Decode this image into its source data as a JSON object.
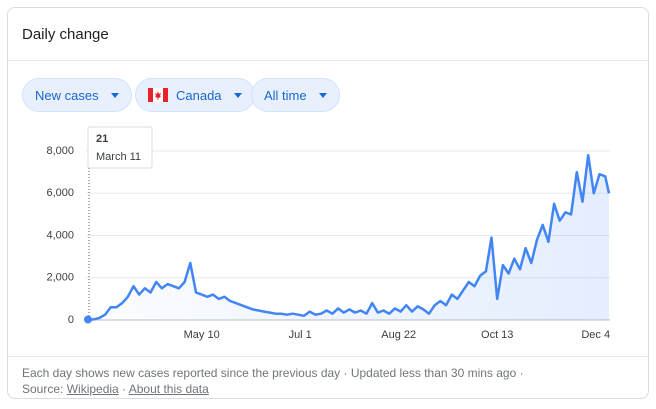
{
  "header": {
    "title": "Daily change"
  },
  "filters": [
    {
      "label": "New cases"
    },
    {
      "label": "Canada"
    },
    {
      "label": "All time"
    }
  ],
  "chart_data": {
    "type": "line",
    "x": [
      "Mar 11",
      "Mar 14",
      "Mar 17",
      "Mar 20",
      "Mar 23",
      "Mar 26",
      "Mar 29",
      "Apr 1",
      "Apr 4",
      "Apr 7",
      "Apr 10",
      "Apr 13",
      "Apr 16",
      "Apr 19",
      "Apr 22",
      "Apr 25",
      "Apr 28",
      "May 1",
      "May 4",
      "May 7",
      "May 10",
      "May 13",
      "May 16",
      "May 19",
      "May 22",
      "May 25",
      "May 28",
      "May 31",
      "Jun 3",
      "Jun 6",
      "Jun 9",
      "Jun 12",
      "Jun 15",
      "Jun 18",
      "Jun 21",
      "Jun 24",
      "Jun 27",
      "Jun 30",
      "Jul 3",
      "Jul 6",
      "Jul 9",
      "Jul 12",
      "Jul 15",
      "Jul 18",
      "Jul 21",
      "Jul 24",
      "Jul 27",
      "Jul 30",
      "Aug 2",
      "Aug 5",
      "Aug 8",
      "Aug 11",
      "Aug 14",
      "Aug 17",
      "Aug 20",
      "Aug 23",
      "Aug 26",
      "Aug 29",
      "Sep 1",
      "Sep 4",
      "Sep 7",
      "Sep 10",
      "Sep 13",
      "Sep 16",
      "Sep 19",
      "Sep 22",
      "Sep 25",
      "Sep 28",
      "Oct 1",
      "Oct 4",
      "Oct 7",
      "Oct 10",
      "Oct 13",
      "Oct 16",
      "Oct 19",
      "Oct 22",
      "Oct 25",
      "Oct 28",
      "Oct 31",
      "Nov 3",
      "Nov 6",
      "Nov 9",
      "Nov 12",
      "Nov 15",
      "Nov 18",
      "Nov 21",
      "Nov 24",
      "Nov 27",
      "Nov 30",
      "Dec 3",
      "Dec 6",
      "Dec 9",
      "Dec 11"
    ],
    "series": [
      {
        "name": "New cases",
        "color": "#4285f4",
        "values": [
          21,
          30,
          100,
          250,
          600,
          600,
          800,
          1100,
          1600,
          1200,
          1500,
          1300,
          1800,
          1500,
          1700,
          1600,
          1500,
          1800,
          2700,
          1300,
          1200,
          1100,
          1200,
          1000,
          1100,
          900,
          800,
          700,
          600,
          500,
          450,
          400,
          350,
          300,
          300,
          250,
          300,
          250,
          200,
          400,
          250,
          300,
          450,
          300,
          550,
          350,
          500,
          350,
          450,
          300,
          800,
          350,
          450,
          300,
          550,
          400,
          700,
          400,
          650,
          500,
          300,
          700,
          900,
          700,
          1200,
          1000,
          1400,
          1800,
          1600,
          2100,
          2300,
          3900,
          1000,
          2600,
          2200,
          2900,
          2400,
          3400,
          2700,
          3800,
          4500,
          3700,
          5500,
          4700,
          5100,
          5000,
          7000,
          5600,
          7800,
          6000,
          6900,
          6800,
          6000
        ]
      }
    ],
    "xlim": [
      "Mar 11",
      "Dec 11"
    ],
    "xticks": [
      "May 10",
      "Jul 1",
      "Aug 22",
      "Oct 13",
      "Dec 4"
    ],
    "ylim": [
      0,
      8000
    ],
    "yticks": [
      0,
      {
        "value": 2000,
        "label": "2,000"
      },
      {
        "value": 4000,
        "label": "4,000"
      },
      {
        "value": 6000,
        "label": "6,000"
      },
      {
        "value": 8000,
        "label": "8,000"
      }
    ],
    "grid": true,
    "area": true,
    "tooltip": {
      "label": "March 11"
    }
  },
  "footer": {
    "note": "Each day shows new cases reported since the previous day · Updated less than 30 mins ago ·",
    "source_label": "Source:",
    "source_link": "Wikipedia",
    "separator": "·",
    "about_link": "About this data"
  }
}
